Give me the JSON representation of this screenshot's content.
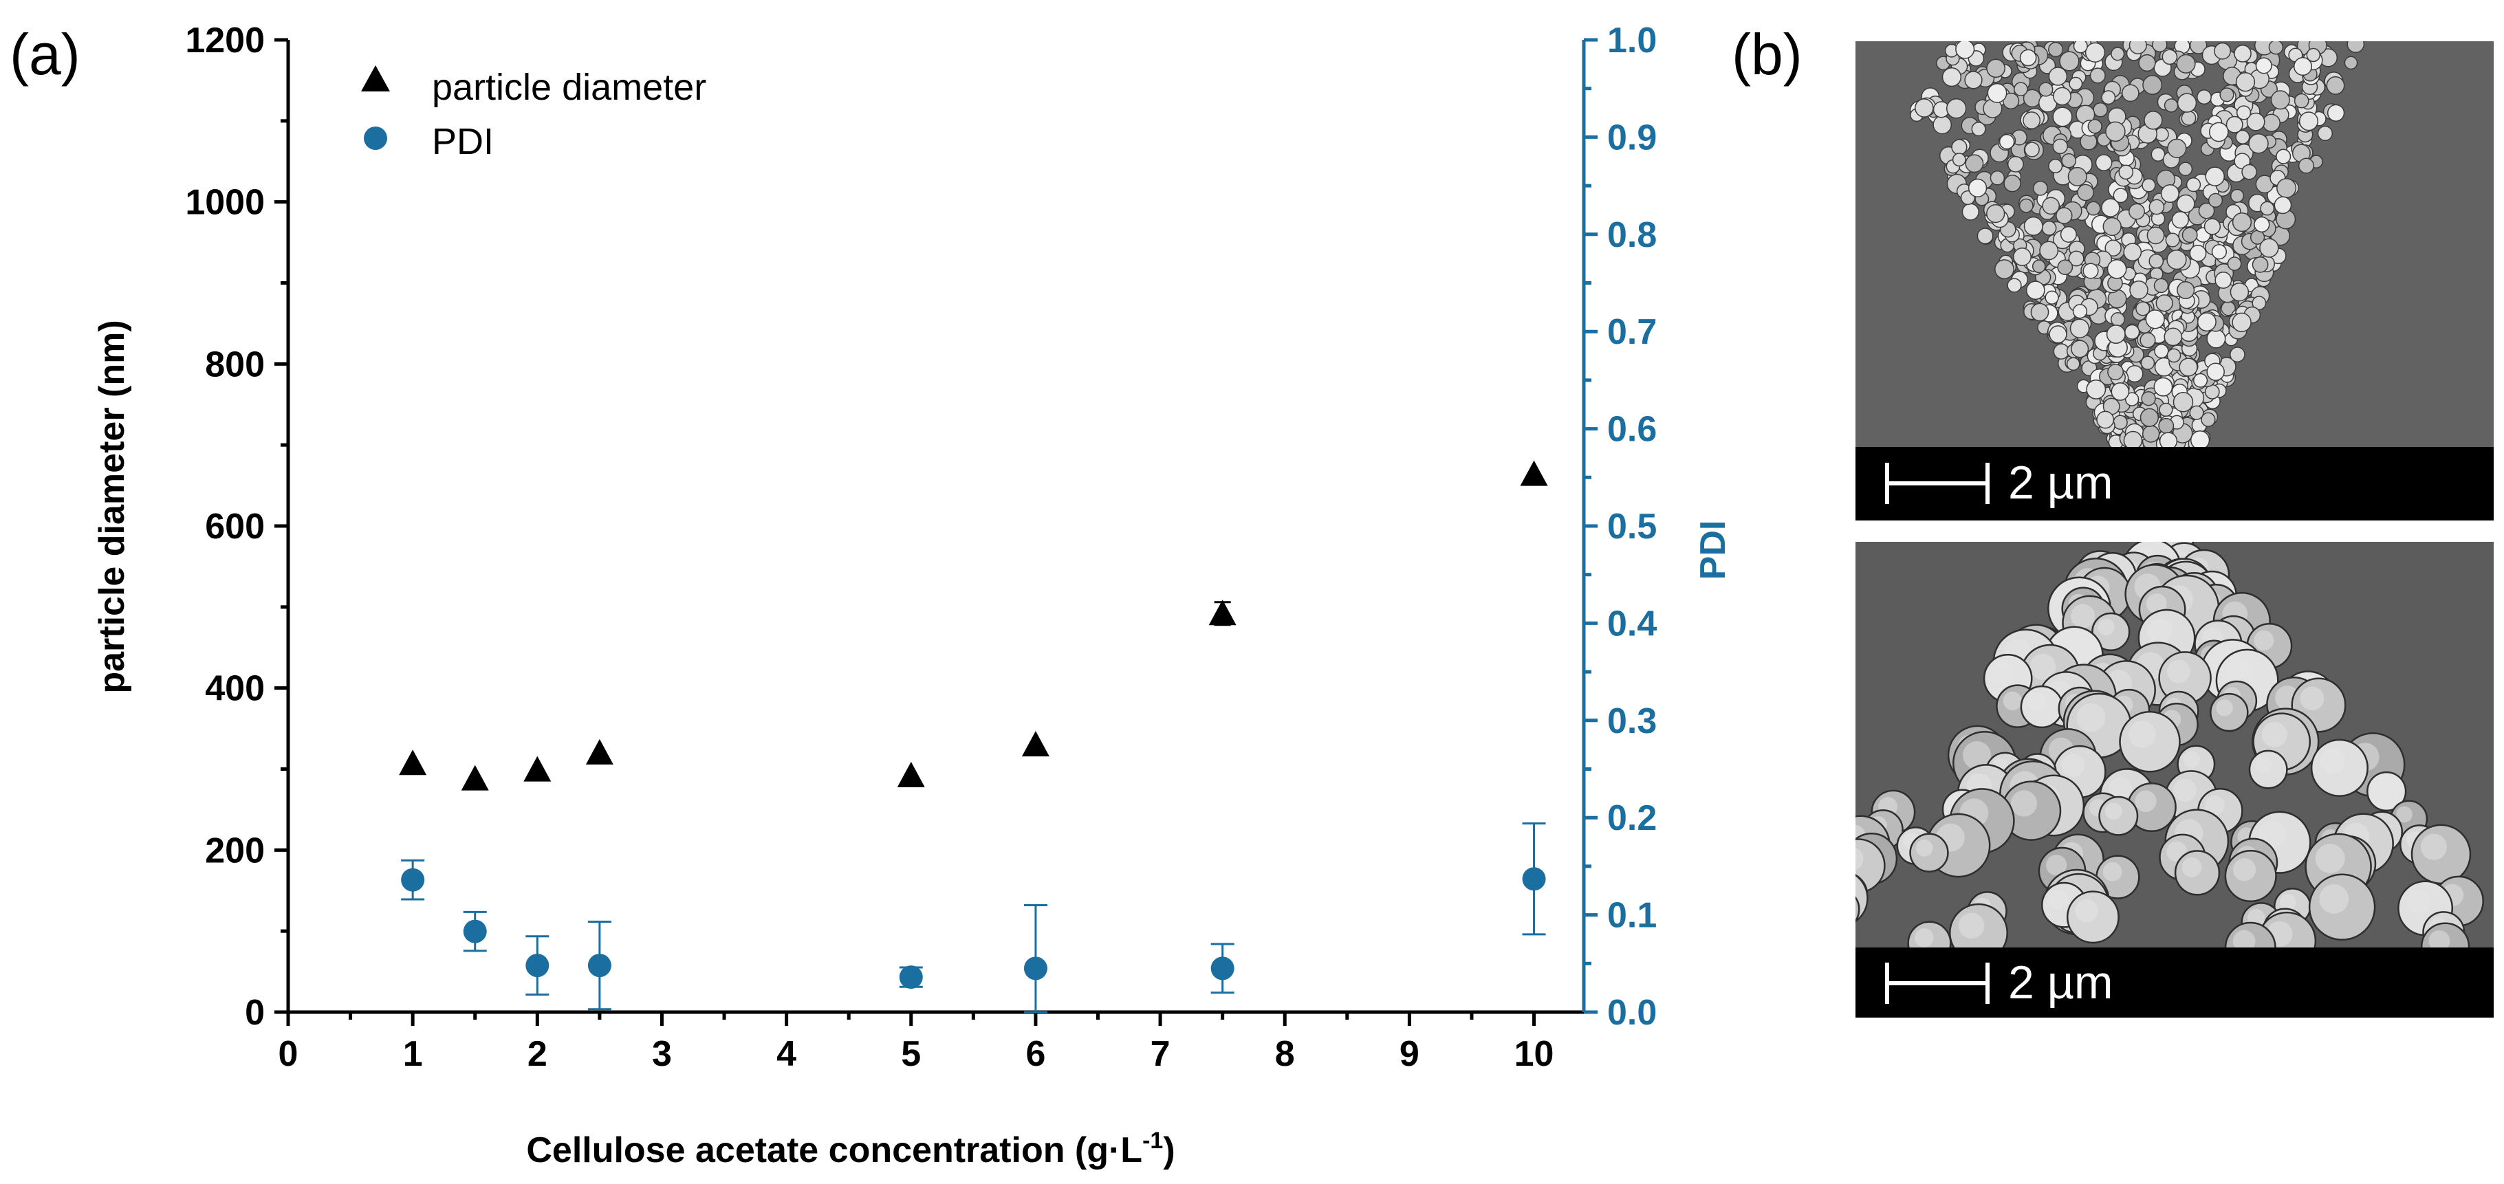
{
  "panel_labels": {
    "a": "(a)",
    "b": "(b)"
  },
  "colors": {
    "triangle": "#000000",
    "pdi": "#1a6fa0",
    "micrograph_bar": "#000000",
    "micrograph_bg": "#5f5f5f",
    "particle": "#c9c9c9"
  },
  "chart_data": {
    "type": "scatter",
    "title": "",
    "xlabel": "Cellulose acetate concentration (g·L",
    "xlabel_sup": "-1",
    "xlabel_close": ")",
    "ylabel": "particle diameter (nm)",
    "y2label": "PDI",
    "xlim": [
      0,
      10.4
    ],
    "ylim": [
      0,
      1200
    ],
    "y2lim": [
      0,
      1.0
    ],
    "x_ticks": [
      0,
      1,
      2,
      3,
      4,
      5,
      6,
      7,
      8,
      9,
      10
    ],
    "y_ticks": [
      0,
      200,
      400,
      600,
      800,
      1000,
      1200
    ],
    "y2_ticks": [
      "0.0",
      "0.1",
      "0.2",
      "0.3",
      "0.4",
      "0.5",
      "0.6",
      "0.7",
      "0.8",
      "0.9",
      "1.0"
    ],
    "legend": [
      {
        "label": "particle diameter",
        "marker": "triangle",
        "color": "#000000"
      },
      {
        "label": "PDI",
        "marker": "circle",
        "color": "#1a6fa0"
      }
    ],
    "series": [
      {
        "name": "particle diameter",
        "axis": "left",
        "marker": "triangle",
        "x": [
          1,
          1.5,
          2,
          2.5,
          5,
          6,
          7.5,
          10
        ],
        "y": [
          307,
          288,
          299,
          320,
          292,
          330,
          492,
          664
        ],
        "err": [
          0,
          0,
          0,
          0,
          0,
          0,
          14,
          0
        ]
      },
      {
        "name": "PDI",
        "axis": "right",
        "marker": "circle",
        "x": [
          1,
          1.5,
          2,
          2.5,
          5,
          6,
          7.5,
          10
        ],
        "y": [
          0.136,
          0.083,
          0.048,
          0.048,
          0.036,
          0.045,
          0.045,
          0.137
        ],
        "err": [
          0.02,
          0.02,
          0.03,
          0.045,
          0.01,
          0.065,
          0.025,
          0.057
        ]
      }
    ]
  },
  "micrographs": [
    {
      "scale_label": "2 µm"
    },
    {
      "scale_label": "2 µm"
    }
  ]
}
